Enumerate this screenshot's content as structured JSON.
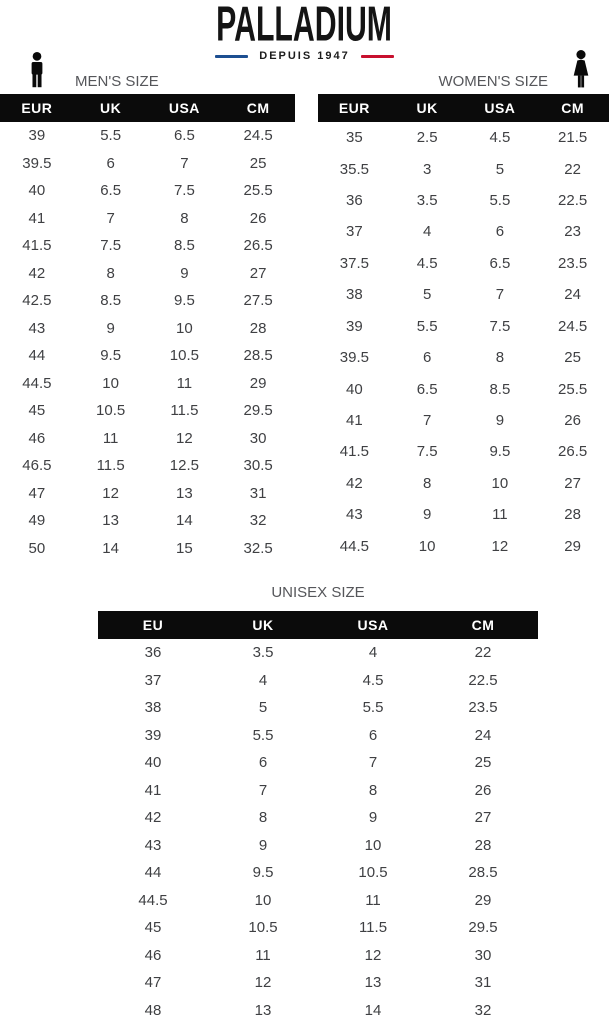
{
  "brand": {
    "name": "PALLADIUM",
    "tagline": "DEPUIS 1947",
    "tagline_blue": "#1d4f91",
    "tagline_red": "#c8102e"
  },
  "colors": {
    "header_bg": "#0b0b0b",
    "header_text": "#ffffff",
    "body_text": "#3f4043",
    "label_text": "#55565a"
  },
  "icons": {
    "men": "man-icon",
    "women": "woman-icon"
  },
  "mens_table": {
    "label": "MEN'S SIZE",
    "headers": [
      "EUR",
      "UK",
      "USA",
      "CM"
    ],
    "rows": [
      [
        "39",
        "5.5",
        "6.5",
        "24.5"
      ],
      [
        "39.5",
        "6",
        "7",
        "25"
      ],
      [
        "40",
        "6.5",
        "7.5",
        "25.5"
      ],
      [
        "41",
        "7",
        "8",
        "26"
      ],
      [
        "41.5",
        "7.5",
        "8.5",
        "26.5"
      ],
      [
        "42",
        "8",
        "9",
        "27"
      ],
      [
        "42.5",
        "8.5",
        "9.5",
        "27.5"
      ],
      [
        "43",
        "9",
        "10",
        "28"
      ],
      [
        "44",
        "9.5",
        "10.5",
        "28.5"
      ],
      [
        "44.5",
        "10",
        "11",
        "29"
      ],
      [
        "45",
        "10.5",
        "11.5",
        "29.5"
      ],
      [
        "46",
        "11",
        "12",
        "30"
      ],
      [
        "46.5",
        "11.5",
        "12.5",
        "30.5"
      ],
      [
        "47",
        "12",
        "13",
        "31"
      ],
      [
        "49",
        "13",
        "14",
        "32"
      ],
      [
        "50",
        "14",
        "15",
        "32.5"
      ]
    ]
  },
  "womens_table": {
    "label": "WOMEN'S SIZE",
    "headers": [
      "EUR",
      "UK",
      "USA",
      "CM"
    ],
    "rows": [
      [
        "35",
        "2.5",
        "4.5",
        "21.5"
      ],
      [
        "35.5",
        "3",
        "5",
        "22"
      ],
      [
        "36",
        "3.5",
        "5.5",
        "22.5"
      ],
      [
        "37",
        "4",
        "6",
        "23"
      ],
      [
        "37.5",
        "4.5",
        "6.5",
        "23.5"
      ],
      [
        "38",
        "5",
        "7",
        "24"
      ],
      [
        "39",
        "5.5",
        "7.5",
        "24.5"
      ],
      [
        "39.5",
        "6",
        "8",
        "25"
      ],
      [
        "40",
        "6.5",
        "8.5",
        "25.5"
      ],
      [
        "41",
        "7",
        "9",
        "26"
      ],
      [
        "41.5",
        "7.5",
        "9.5",
        "26.5"
      ],
      [
        "42",
        "8",
        "10",
        "27"
      ],
      [
        "43",
        "9",
        "11",
        "28"
      ],
      [
        "44.5",
        "10",
        "12",
        "29"
      ]
    ]
  },
  "unisex_table": {
    "label": "UNISEX SIZE",
    "headers": [
      "EU",
      "UK",
      "USA",
      "CM"
    ],
    "rows": [
      [
        "36",
        "3.5",
        "4",
        "22"
      ],
      [
        "37",
        "4",
        "4.5",
        "22.5"
      ],
      [
        "38",
        "5",
        "5.5",
        "23.5"
      ],
      [
        "39",
        "5.5",
        "6",
        "24"
      ],
      [
        "40",
        "6",
        "7",
        "25"
      ],
      [
        "41",
        "7",
        "8",
        "26"
      ],
      [
        "42",
        "8",
        "9",
        "27"
      ],
      [
        "43",
        "9",
        "10",
        "28"
      ],
      [
        "44",
        "9.5",
        "10.5",
        "28.5"
      ],
      [
        "44.5",
        "10",
        "11",
        "29"
      ],
      [
        "45",
        "10.5",
        "11.5",
        "29.5"
      ],
      [
        "46",
        "11",
        "12",
        "30"
      ],
      [
        "47",
        "12",
        "13",
        "31"
      ],
      [
        "48",
        "13",
        "14",
        "32"
      ]
    ]
  }
}
